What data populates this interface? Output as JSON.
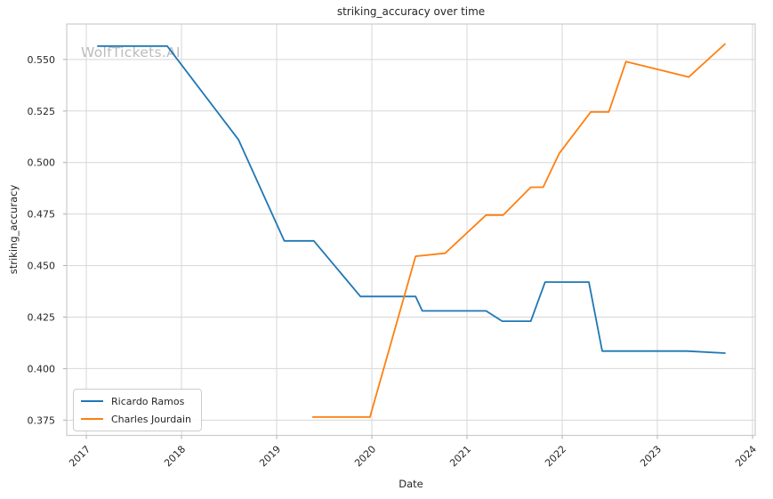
{
  "colors": {
    "background": "#ffffff",
    "grid": "#d7d7d7",
    "spine": "#cbcbcb",
    "tick_mark": "#b0b0b0",
    "text": "#262626",
    "watermark": "#bcbcbc",
    "series_blue": "#1f77b4",
    "series_orange": "#ff7f0e"
  },
  "chart_data": {
    "type": "line",
    "title": "striking_accuracy over time",
    "xlabel": "Date",
    "ylabel": "striking_accuracy",
    "watermark": "WolfTickets.AI",
    "grid": true,
    "legend_position": "lower left",
    "xlim": [
      2016.794,
      2024.028
    ],
    "ylim": [
      0.3676,
      0.5672
    ],
    "x_ticks": [
      2017,
      2018,
      2019,
      2020,
      2021,
      2022,
      2023,
      2024
    ],
    "y_ticks": [
      0.375,
      0.4,
      0.425,
      0.45,
      0.475,
      0.5,
      0.525,
      0.55
    ],
    "series": [
      {
        "name": "Ricardo Ramos",
        "color": "#1f77b4",
        "points": [
          [
            2017.12,
            0.5565
          ],
          [
            2017.85,
            0.5565
          ],
          [
            2018.6,
            0.511
          ],
          [
            2019.08,
            0.462
          ],
          [
            2019.39,
            0.462
          ],
          [
            2019.88,
            0.435
          ],
          [
            2020.46,
            0.435
          ],
          [
            2020.53,
            0.428
          ],
          [
            2021.2,
            0.428
          ],
          [
            2021.37,
            0.423
          ],
          [
            2021.67,
            0.423
          ],
          [
            2021.82,
            0.442
          ],
          [
            2022.28,
            0.442
          ],
          [
            2022.42,
            0.4085
          ],
          [
            2023.31,
            0.4085
          ],
          [
            2023.71,
            0.4075
          ]
        ]
      },
      {
        "name": "Charles Jourdain",
        "color": "#ff7f0e",
        "points": [
          [
            2019.38,
            0.3765
          ],
          [
            2019.98,
            0.3765
          ],
          [
            2020.46,
            0.4545
          ],
          [
            2020.77,
            0.456
          ],
          [
            2021.2,
            0.4745
          ],
          [
            2021.38,
            0.4745
          ],
          [
            2021.67,
            0.488
          ],
          [
            2021.8,
            0.488
          ],
          [
            2021.97,
            0.5045
          ],
          [
            2022.3,
            0.5245
          ],
          [
            2022.49,
            0.5245
          ],
          [
            2022.67,
            0.549
          ],
          [
            2023.33,
            0.5415
          ],
          [
            2023.71,
            0.5575
          ]
        ]
      }
    ]
  }
}
